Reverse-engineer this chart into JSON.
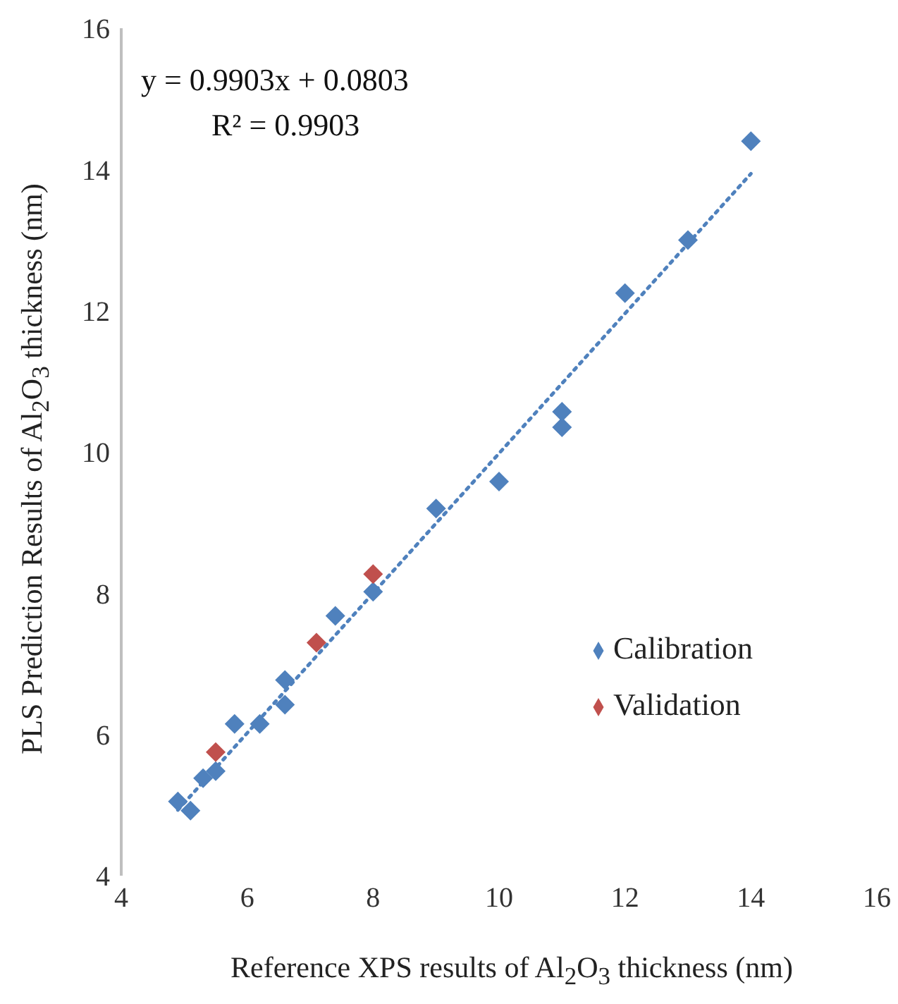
{
  "chart_data": {
    "type": "scatter",
    "xlabel": "Reference XPS results of Al$_{2}$O$_{3}$ thickness (nm)",
    "ylabel": "PLS Prediction Results of Al$_{2}$O$_{3}$ thickness (nm)",
    "annotations": [
      "y = 0.9903x + 0.0803",
      "R² = 0.9903"
    ],
    "xlim": [
      4,
      16
    ],
    "xticks": [
      4,
      6,
      8,
      10,
      12,
      14,
      16
    ],
    "ylim": [
      4,
      16
    ],
    "yticks": [
      4,
      6,
      8,
      10,
      12,
      14,
      16
    ],
    "grid": false,
    "legend": "right",
    "marker": "diamond",
    "series": [
      {
        "name": "Calibration",
        "color": "#4f81bd",
        "x": [
          4.9,
          5.1,
          5.3,
          5.5,
          5.8,
          6.2,
          6.6,
          6.6,
          7.4,
          8,
          9,
          10,
          11,
          11,
          12,
          13,
          14
        ],
        "values": [
          5.05,
          4.92,
          5.38,
          5.48,
          6.15,
          6.15,
          6.42,
          6.77,
          7.68,
          8.02,
          9.2,
          9.58,
          10.35,
          10.57,
          12.25,
          13.0,
          14.4
        ]
      },
      {
        "name": "Validation",
        "color": "#c0504d",
        "x": [
          5.5,
          7.1,
          8
        ],
        "values": [
          5.75,
          7.3,
          8.27
        ]
      },
      {
        "type": "line",
        "line_style": "dotted",
        "marker": "none",
        "color": "#4f81bd",
        "x": [
          4.9,
          14
        ],
        "values": [
          4.93,
          13.94
        ]
      }
    ]
  }
}
